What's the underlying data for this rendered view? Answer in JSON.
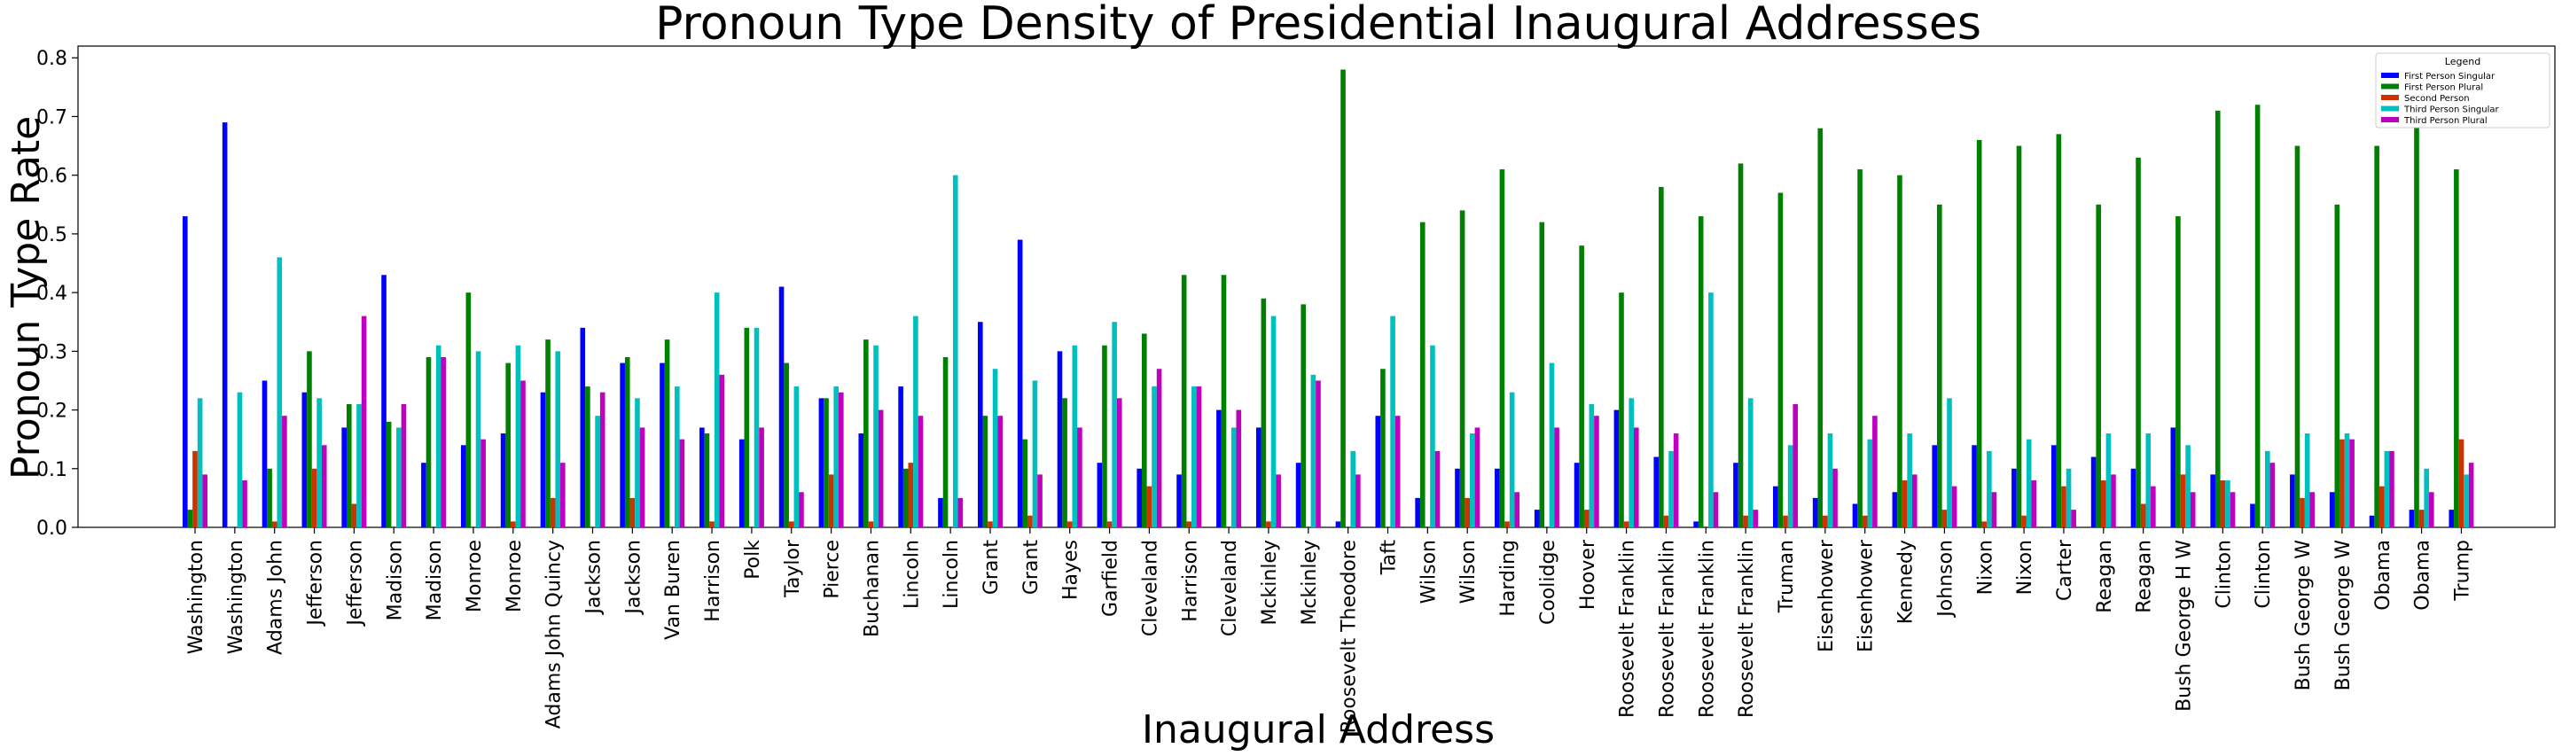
{
  "chart_data": {
    "type": "bar",
    "title": "Pronoun Type Density of Presidential Inaugural Addresses",
    "xlabel": "Inaugural Address",
    "ylabel": "Pronoun Type Rate",
    "ylim": [
      0,
      0.82
    ],
    "yticks": [
      "0.0",
      "0.1",
      "0.2",
      "0.3",
      "0.4",
      "0.5",
      "0.6",
      "0.7",
      "0.8"
    ],
    "legend_title": "Legend",
    "legend_position": "top-right",
    "categories": [
      "Washington",
      "Washington",
      "Adams John",
      "Jefferson",
      "Jefferson",
      "Madison",
      "Madison",
      "Monroe",
      "Monroe",
      "Adams John Quincy",
      "Jackson",
      "Jackson",
      "Van Buren",
      "Harrison",
      "Polk",
      "Taylor",
      "Pierce",
      "Buchanan",
      "Lincoln",
      "Lincoln",
      "Grant",
      "Grant",
      "Hayes",
      "Garfield",
      "Cleveland",
      "Harrison",
      "Cleveland",
      "Mckinley",
      "Mckinley",
      "Roosevelt Theodore",
      "Taft",
      "Wilson",
      "Wilson",
      "Harding",
      "Coolidge",
      "Hoover",
      "Roosevelt Franklin",
      "Roosevelt Franklin",
      "Roosevelt Franklin",
      "Roosevelt Franklin",
      "Truman",
      "Eisenhower",
      "Eisenhower",
      "Kennedy",
      "Johnson",
      "Nixon",
      "Nixon",
      "Carter",
      "Reagan",
      "Reagan",
      "Bush George H W",
      "Clinton",
      "Clinton",
      "Bush George W",
      "Bush George W",
      "Obama",
      "Obama",
      "Trump"
    ],
    "series": [
      {
        "name": "First Person Singular",
        "color": "#0000ff",
        "values": [
          0.53,
          0.69,
          0.25,
          0.23,
          0.17,
          0.43,
          0.11,
          0.14,
          0.16,
          0.23,
          0.34,
          0.28,
          0.28,
          0.17,
          0.15,
          0.41,
          0.22,
          0.16,
          0.24,
          0.05,
          0.35,
          0.49,
          0.3,
          0.11,
          0.1,
          0.09,
          0.2,
          0.17,
          0.11,
          0.01,
          0.19,
          0.05,
          0.1,
          0.1,
          0.03,
          0.11,
          0.2,
          0.12,
          0.01,
          0.11,
          0.07,
          0.05,
          0.04,
          0.06,
          0.14,
          0.14,
          0.1,
          0.14,
          0.12,
          0.1,
          0.17,
          0.09,
          0.04,
          0.09,
          0.06,
          0.02,
          0.03,
          0.03
        ]
      },
      {
        "name": "First Person Plural",
        "color": "#008000",
        "values": [
          0.03,
          0.0,
          0.1,
          0.3,
          0.21,
          0.18,
          0.29,
          0.4,
          0.28,
          0.32,
          0.24,
          0.29,
          0.32,
          0.16,
          0.34,
          0.28,
          0.22,
          0.32,
          0.1,
          0.29,
          0.19,
          0.15,
          0.22,
          0.31,
          0.33,
          0.43,
          0.43,
          0.39,
          0.38,
          0.78,
          0.27,
          0.52,
          0.54,
          0.61,
          0.52,
          0.48,
          0.4,
          0.58,
          0.53,
          0.62,
          0.57,
          0.68,
          0.61,
          0.6,
          0.55,
          0.66,
          0.65,
          0.67,
          0.55,
          0.63,
          0.53,
          0.71,
          0.72,
          0.65,
          0.55,
          0.65,
          0.77,
          0.61
        ]
      },
      {
        "name": "Second Person",
        "color": "#cc3300",
        "values": [
          0.13,
          0.0,
          0.01,
          0.1,
          0.04,
          0.0,
          0.0,
          0.0,
          0.01,
          0.05,
          0.0,
          0.05,
          0.0,
          0.01,
          0.0,
          0.01,
          0.09,
          0.01,
          0.11,
          0.0,
          0.01,
          0.02,
          0.01,
          0.01,
          0.07,
          0.01,
          0.0,
          0.01,
          0.0,
          0.0,
          0.0,
          0.0,
          0.05,
          0.01,
          0.0,
          0.03,
          0.01,
          0.02,
          0.0,
          0.02,
          0.02,
          0.02,
          0.02,
          0.08,
          0.03,
          0.01,
          0.02,
          0.07,
          0.08,
          0.04,
          0.09,
          0.08,
          0.0,
          0.05,
          0.15,
          0.07,
          0.03,
          0.15
        ]
      },
      {
        "name": "Third Person Singular",
        "color": "#00bfbf",
        "values": [
          0.22,
          0.23,
          0.46,
          0.22,
          0.21,
          0.17,
          0.31,
          0.3,
          0.31,
          0.3,
          0.19,
          0.22,
          0.24,
          0.4,
          0.34,
          0.24,
          0.24,
          0.31,
          0.36,
          0.6,
          0.27,
          0.25,
          0.31,
          0.35,
          0.24,
          0.24,
          0.17,
          0.36,
          0.26,
          0.13,
          0.36,
          0.31,
          0.16,
          0.23,
          0.28,
          0.21,
          0.22,
          0.13,
          0.4,
          0.22,
          0.14,
          0.16,
          0.15,
          0.16,
          0.22,
          0.13,
          0.15,
          0.1,
          0.16,
          0.16,
          0.14,
          0.08,
          0.13,
          0.16,
          0.16,
          0.13,
          0.1,
          0.09
        ]
      },
      {
        "name": "Third Person Plural",
        "color": "#bf00bf",
        "values": [
          0.09,
          0.08,
          0.19,
          0.14,
          0.36,
          0.21,
          0.29,
          0.15,
          0.25,
          0.11,
          0.23,
          0.17,
          0.15,
          0.26,
          0.17,
          0.06,
          0.23,
          0.2,
          0.19,
          0.05,
          0.19,
          0.09,
          0.17,
          0.22,
          0.27,
          0.24,
          0.2,
          0.09,
          0.25,
          0.09,
          0.19,
          0.13,
          0.17,
          0.06,
          0.17,
          0.19,
          0.17,
          0.16,
          0.06,
          0.03,
          0.21,
          0.1,
          0.19,
          0.09,
          0.07,
          0.06,
          0.08,
          0.03,
          0.09,
          0.07,
          0.06,
          0.06,
          0.11,
          0.06,
          0.15,
          0.13,
          0.06,
          0.11
        ]
      }
    ]
  }
}
